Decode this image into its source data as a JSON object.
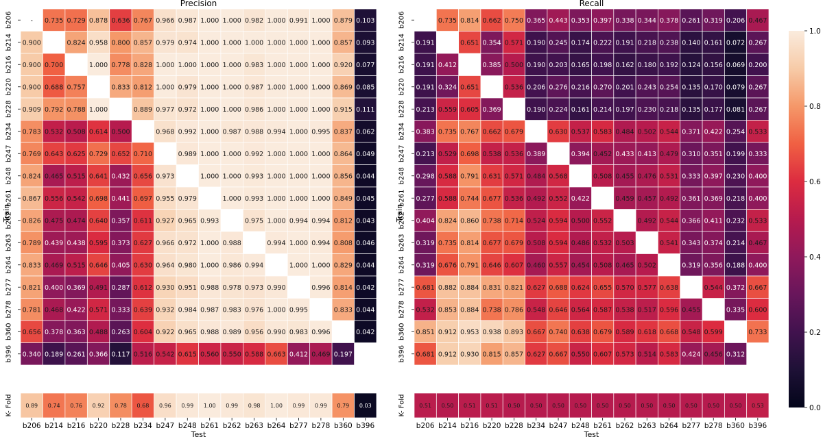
{
  "chart_data": [
    {
      "type": "heatmap",
      "title": "Precision",
      "xlabel": "Test",
      "ylabel": "Train",
      "rows": [
        "b206",
        "b214",
        "b216",
        "b220",
        "b228",
        "b234",
        "b247",
        "b248",
        "b261",
        "b262",
        "b263",
        "b264",
        "b277",
        "b278",
        "b360",
        "b396"
      ],
      "cols": [
        "b206",
        "b214",
        "b216",
        "b220",
        "b228",
        "b234",
        "b247",
        "b248",
        "b261",
        "b262",
        "b263",
        "b264",
        "b277",
        "b278",
        "b360",
        "b396"
      ],
      "values": [
        [
          "-",
          "0.735",
          "0.729",
          "0.878",
          "0.636",
          "0.767",
          "0.966",
          "0.987",
          "1.000",
          "1.000",
          "0.982",
          "1.000",
          "0.991",
          "1.000",
          "0.879",
          "0.103"
        ],
        [
          "0.900",
          null,
          "0.824",
          "0.958",
          "0.800",
          "0.857",
          "0.979",
          "0.974",
          "1.000",
          "1.000",
          "1.000",
          "1.000",
          "1.000",
          "1.000",
          "0.857",
          "0.093"
        ],
        [
          "0.900",
          "0.700",
          null,
          "1.000",
          "0.778",
          "0.828",
          "1.000",
          "1.000",
          "1.000",
          "1.000",
          "0.983",
          "1.000",
          "1.000",
          "1.000",
          "0.920",
          "0.077"
        ],
        [
          "0.900",
          "0.688",
          "0.757",
          null,
          "0.833",
          "0.812",
          "1.000",
          "0.979",
          "1.000",
          "1.000",
          "0.987",
          "1.000",
          "1.000",
          "1.000",
          "0.869",
          "0.085"
        ],
        [
          "0.909",
          "0.792",
          "0.788",
          "1.000",
          null,
          "0.889",
          "0.977",
          "0.972",
          "1.000",
          "1.000",
          "0.986",
          "1.000",
          "1.000",
          "1.000",
          "0.915",
          "0.111"
        ],
        [
          "0.783",
          "0.532",
          "0.508",
          "0.614",
          "0.500",
          null,
          "0.968",
          "0.992",
          "1.000",
          "0.987",
          "0.988",
          "0.994",
          "1.000",
          "0.995",
          "0.837",
          "0.062"
        ],
        [
          "0.769",
          "0.643",
          "0.625",
          "0.729",
          "0.652",
          "0.710",
          null,
          "0.989",
          "1.000",
          "1.000",
          "0.992",
          "1.000",
          "1.000",
          "1.000",
          "0.864",
          "0.049"
        ],
        [
          "0.824",
          "0.465",
          "0.515",
          "0.641",
          "0.432",
          "0.656",
          "0.973",
          null,
          "1.000",
          "1.000",
          "0.993",
          "1.000",
          "1.000",
          "1.000",
          "0.856",
          "0.044"
        ],
        [
          "0.867",
          "0.556",
          "0.542",
          "0.698",
          "0.441",
          "0.697",
          "0.955",
          "0.979",
          null,
          "1.000",
          "0.993",
          "1.000",
          "1.000",
          "1.000",
          "0.849",
          "0.045"
        ],
        [
          "0.826",
          "0.475",
          "0.474",
          "0.640",
          "0.357",
          "0.611",
          "0.927",
          "0.965",
          "0.993",
          null,
          "0.975",
          "1.000",
          "0.994",
          "0.994",
          "0.812",
          "0.043"
        ],
        [
          "0.789",
          "0.439",
          "0.438",
          "0.595",
          "0.373",
          "0.627",
          "0.966",
          "0.972",
          "1.000",
          "0.988",
          null,
          "0.994",
          "1.000",
          "0.994",
          "0.808",
          "0.046"
        ],
        [
          "0.833",
          "0.469",
          "0.515",
          "0.646",
          "0.405",
          "0.630",
          "0.964",
          "0.980",
          "1.000",
          "0.986",
          "0.994",
          null,
          "1.000",
          "1.000",
          "0.829",
          "0.044"
        ],
        [
          "0.821",
          "0.400",
          "0.369",
          "0.491",
          "0.287",
          "0.612",
          "0.930",
          "0.951",
          "0.988",
          "0.978",
          "0.973",
          "0.990",
          null,
          "0.996",
          "0.814",
          "0.042"
        ],
        [
          "0.781",
          "0.468",
          "0.422",
          "0.571",
          "0.333",
          "0.639",
          "0.932",
          "0.984",
          "0.987",
          "0.983",
          "0.976",
          "1.000",
          "0.995",
          null,
          "0.833",
          "0.044"
        ],
        [
          "0.656",
          "0.378",
          "0.363",
          "0.488",
          "0.263",
          "0.604",
          "0.922",
          "0.965",
          "0.988",
          "0.989",
          "0.956",
          "0.990",
          "0.983",
          "0.996",
          null,
          "0.042"
        ],
        [
          "0.340",
          "0.189",
          "0.261",
          "0.366",
          "0.117",
          "0.516",
          "0.542",
          "0.615",
          "0.560",
          "0.550",
          "0.588",
          "0.663",
          "0.412",
          "0.469",
          "0.197",
          null
        ]
      ],
      "kfold_label": "K- Fold",
      "kfold": [
        "0.89",
        "0.74",
        "0.76",
        "0.92",
        "0.78",
        "0.68",
        "0.96",
        "0.99",
        "1.00",
        "0.99",
        "0.98",
        "1.00",
        "0.99",
        "0.99",
        "0.79",
        "0.03"
      ]
    },
    {
      "type": "heatmap",
      "title": "Recall",
      "xlabel": "Test",
      "ylabel": "Train",
      "rows": [
        "b206",
        "b214",
        "b216",
        "b220",
        "b228",
        "b234",
        "b247",
        "b248",
        "b261",
        "b262",
        "b263",
        "b264",
        "b277",
        "b278",
        "b360",
        "b396"
      ],
      "cols": [
        "b206",
        "b214",
        "b216",
        "b220",
        "b228",
        "b234",
        "b247",
        "b248",
        "b261",
        "b262",
        "b263",
        "b264",
        "b277",
        "b278",
        "b360",
        "b396"
      ],
      "values": [
        [
          null,
          "0.735",
          "0.814",
          "0.662",
          "0.750",
          "0.365",
          "0.443",
          "0.353",
          "0.397",
          "0.338",
          "0.344",
          "0.378",
          "0.261",
          "0.319",
          "0.206",
          "0.467"
        ],
        [
          "0.191",
          null,
          "0.651",
          "0.354",
          "0.571",
          "0.190",
          "0.245",
          "0.174",
          "0.222",
          "0.191",
          "0.218",
          "0.238",
          "0.140",
          "0.161",
          "0.072",
          "0.267"
        ],
        [
          "0.191",
          "0.412",
          null,
          "0.385",
          "0.500",
          "0.190",
          "0.203",
          "0.165",
          "0.198",
          "0.162",
          "0.180",
          "0.192",
          "0.124",
          "0.156",
          "0.069",
          "0.200"
        ],
        [
          "0.191",
          "0.324",
          "0.651",
          null,
          "0.536",
          "0.206",
          "0.276",
          "0.216",
          "0.270",
          "0.201",
          "0.243",
          "0.254",
          "0.135",
          "0.170",
          "0.079",
          "0.267"
        ],
        [
          "0.213",
          "0.559",
          "0.605",
          "0.369",
          null,
          "0.190",
          "0.224",
          "0.161",
          "0.214",
          "0.197",
          "0.230",
          "0.218",
          "0.135",
          "0.177",
          "0.081",
          "0.267"
        ],
        [
          "0.383",
          "0.735",
          "0.767",
          "0.662",
          "0.679",
          null,
          "0.630",
          "0.537",
          "0.583",
          "0.484",
          "0.502",
          "0.544",
          "0.371",
          "0.422",
          "0.254",
          "0.533"
        ],
        [
          "0.213",
          "0.529",
          "0.698",
          "0.538",
          "0.536",
          "0.389",
          null,
          "0.394",
          "0.452",
          "0.433",
          "0.413",
          "0.479",
          "0.310",
          "0.351",
          "0.199",
          "0.333"
        ],
        [
          "0.298",
          "0.588",
          "0.791",
          "0.631",
          "0.571",
          "0.484",
          "0.568",
          null,
          "0.508",
          "0.455",
          "0.476",
          "0.531",
          "0.333",
          "0.397",
          "0.230",
          "0.400"
        ],
        [
          "0.277",
          "0.588",
          "0.744",
          "0.677",
          "0.536",
          "0.492",
          "0.552",
          "0.422",
          null,
          "0.459",
          "0.457",
          "0.492",
          "0.361",
          "0.369",
          "0.218",
          "0.400"
        ],
        [
          "0.404",
          "0.824",
          "0.860",
          "0.738",
          "0.714",
          "0.524",
          "0.594",
          "0.500",
          "0.552",
          null,
          "0.492",
          "0.544",
          "0.366",
          "0.411",
          "0.232",
          "0.533"
        ],
        [
          "0.319",
          "0.735",
          "0.814",
          "0.677",
          "0.679",
          "0.508",
          "0.594",
          "0.486",
          "0.532",
          "0.503",
          null,
          "0.541",
          "0.343",
          "0.374",
          "0.214",
          "0.467"
        ],
        [
          "0.319",
          "0.676",
          "0.791",
          "0.646",
          "0.607",
          "0.460",
          "0.557",
          "0.454",
          "0.508",
          "0.465",
          "0.502",
          null,
          "0.319",
          "0.356",
          "0.188",
          "0.400"
        ],
        [
          "0.681",
          "0.882",
          "0.884",
          "0.831",
          "0.821",
          "0.627",
          "0.688",
          "0.624",
          "0.655",
          "0.570",
          "0.577",
          "0.638",
          null,
          "0.544",
          "0.372",
          "0.667"
        ],
        [
          "0.532",
          "0.853",
          "0.884",
          "0.738",
          "0.786",
          "0.548",
          "0.646",
          "0.564",
          "0.587",
          "0.538",
          "0.517",
          "0.596",
          "0.455",
          null,
          "0.335",
          "0.600"
        ],
        [
          "0.851",
          "0.912",
          "0.953",
          "0.938",
          "0.893",
          "0.667",
          "0.740",
          "0.638",
          "0.679",
          "0.589",
          "0.618",
          "0.668",
          "0.548",
          "0.599",
          null,
          "0.733"
        ],
        [
          "0.681",
          "0.912",
          "0.930",
          "0.815",
          "0.857",
          "0.627",
          "0.667",
          "0.550",
          "0.607",
          "0.573",
          "0.514",
          "0.583",
          "0.424",
          "0.456",
          "0.312",
          null
        ]
      ],
      "kfold_label": "K- Fold",
      "kfold": [
        "0.51",
        "0.50",
        "0.51",
        "0.51",
        "0.50",
        "0.50",
        "0.50",
        "0.50",
        "0.50",
        "0.50",
        "0.50",
        "0.50",
        "0.50",
        "0.50",
        "0.50",
        "0.53"
      ]
    }
  ],
  "colorbar": {
    "ticks": [
      "0.0",
      "0.2",
      "0.4",
      "0.6",
      "0.8",
      "1.0"
    ],
    "range": [
      0,
      1
    ],
    "colormap": "rocket"
  }
}
